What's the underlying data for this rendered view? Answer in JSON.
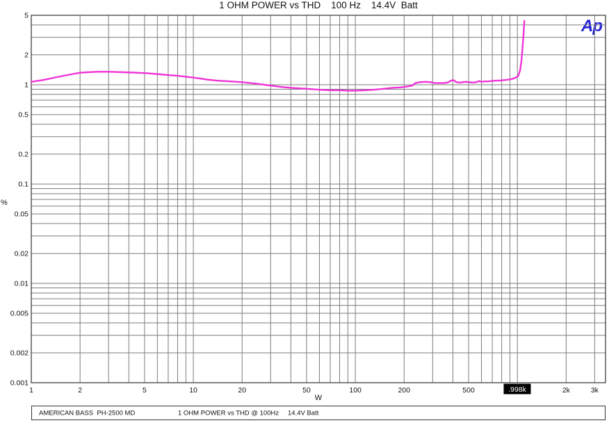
{
  "title": "1 OHM POWER vs THD    100 Hz    14.4V  Batt",
  "logo_text": "Ap",
  "footer": {
    "device": "AMERICAN BASS  PH-2500 MD",
    "test": "1 OHM POWER vs THD @ 100Hz",
    "condition": "14.4V Batt"
  },
  "colors": {
    "curve": "#f032d8",
    "grid": "#7b7b7b",
    "border": "#3f3f3f",
    "tick_text": "#111111",
    "logo": "#2323d4",
    "cursor_bg": "#000000",
    "cursor_fg": "#ffffff"
  },
  "chart_data": {
    "type": "line",
    "title": "1 OHM POWER vs THD    100 Hz    14.4V  Batt",
    "xlabel": "W",
    "ylabel": "%",
    "x_scale": "log",
    "y_scale": "log",
    "xlim": [
      1,
      3500
    ],
    "ylim": [
      0.001,
      5
    ],
    "grid": true,
    "x_ticks": [
      {
        "v": 1,
        "label": "1"
      },
      {
        "v": 2,
        "label": "2"
      },
      {
        "v": 5,
        "label": "5"
      },
      {
        "v": 10,
        "label": "10"
      },
      {
        "v": 20,
        "label": "20"
      },
      {
        "v": 50,
        "label": "50"
      },
      {
        "v": 100,
        "label": "100"
      },
      {
        "v": 200,
        "label": "200"
      },
      {
        "v": 500,
        "label": "500"
      },
      {
        "v": 2000,
        "label": "2k"
      },
      {
        "v": 3000,
        "label": "3k"
      }
    ],
    "y_ticks": [
      {
        "v": 5,
        "label": "5"
      },
      {
        "v": 2,
        "label": "2"
      },
      {
        "v": 1,
        "label": "1"
      },
      {
        "v": 0.5,
        "label": "0.5"
      },
      {
        "v": 0.2,
        "label": "0.2"
      },
      {
        "v": 0.1,
        "label": "0.1"
      },
      {
        "v": 0.05,
        "label": "0.05"
      },
      {
        "v": 0.02,
        "label": "0.02"
      },
      {
        "v": 0.01,
        "label": "0.01"
      },
      {
        "v": 0.005,
        "label": "0.005"
      },
      {
        "v": 0.002,
        "label": "0.002"
      },
      {
        "v": 0.001,
        "label": "0.001"
      }
    ],
    "x_gridlines": [
      1,
      2,
      3,
      4,
      5,
      6,
      7,
      8,
      9,
      10,
      20,
      30,
      40,
      50,
      60,
      70,
      80,
      90,
      100,
      200,
      300,
      400,
      500,
      600,
      700,
      800,
      900,
      1000,
      2000,
      3000
    ],
    "y_gridlines": [
      0.001,
      0.002,
      0.003,
      0.004,
      0.005,
      0.006,
      0.007,
      0.008,
      0.009,
      0.01,
      0.02,
      0.03,
      0.04,
      0.05,
      0.06,
      0.07,
      0.08,
      0.09,
      0.1,
      0.2,
      0.3,
      0.4,
      0.5,
      0.6,
      0.7,
      0.8,
      0.9,
      1,
      2,
      3,
      4,
      5
    ],
    "cursor": {
      "x_w": 998,
      "label": ".998k"
    },
    "series": [
      {
        "name": "1 OHM POWER vs THD",
        "color": "#f032d8",
        "points": [
          [
            1,
            1.07
          ],
          [
            1.2,
            1.12
          ],
          [
            1.5,
            1.21
          ],
          [
            1.8,
            1.28
          ],
          [
            2,
            1.32
          ],
          [
            2.3,
            1.34
          ],
          [
            2.6,
            1.35
          ],
          [
            3,
            1.35
          ],
          [
            3.5,
            1.34
          ],
          [
            4,
            1.33
          ],
          [
            5,
            1.31
          ],
          [
            6,
            1.28
          ],
          [
            7,
            1.25
          ],
          [
            8,
            1.23
          ],
          [
            10,
            1.18
          ],
          [
            12,
            1.13
          ],
          [
            14,
            1.1
          ],
          [
            17,
            1.08
          ],
          [
            20,
            1.06
          ],
          [
            25,
            1.02
          ],
          [
            30,
            0.98
          ],
          [
            35,
            0.95
          ],
          [
            40,
            0.93
          ],
          [
            50,
            0.91
          ],
          [
            60,
            0.89
          ],
          [
            70,
            0.88
          ],
          [
            80,
            0.88
          ],
          [
            90,
            0.87
          ],
          [
            100,
            0.87
          ],
          [
            115,
            0.88
          ],
          [
            130,
            0.89
          ],
          [
            150,
            0.91
          ],
          [
            170,
            0.93
          ],
          [
            190,
            0.94
          ],
          [
            210,
            0.96
          ],
          [
            225,
            0.98
          ],
          [
            235,
            1.04
          ],
          [
            250,
            1.06
          ],
          [
            270,
            1.07
          ],
          [
            290,
            1.06
          ],
          [
            310,
            1.04
          ],
          [
            330,
            1.04
          ],
          [
            350,
            1.04
          ],
          [
            370,
            1.05
          ],
          [
            390,
            1.1
          ],
          [
            405,
            1.11
          ],
          [
            420,
            1.06
          ],
          [
            440,
            1.05
          ],
          [
            460,
            1.06
          ],
          [
            480,
            1.07
          ],
          [
            500,
            1.06
          ],
          [
            530,
            1.05
          ],
          [
            560,
            1.06
          ],
          [
            580,
            1.09
          ],
          [
            600,
            1.07
          ],
          [
            630,
            1.08
          ],
          [
            660,
            1.08
          ],
          [
            700,
            1.09
          ],
          [
            740,
            1.1
          ],
          [
            780,
            1.1
          ],
          [
            820,
            1.11
          ],
          [
            860,
            1.12
          ],
          [
            900,
            1.13
          ],
          [
            940,
            1.15
          ],
          [
            980,
            1.18
          ],
          [
            1010,
            1.22
          ],
          [
            1040,
            1.4
          ],
          [
            1060,
            1.75
          ],
          [
            1075,
            2.3
          ],
          [
            1090,
            3.1
          ],
          [
            1100,
            4.0
          ],
          [
            1105,
            4.4
          ]
        ]
      }
    ]
  }
}
